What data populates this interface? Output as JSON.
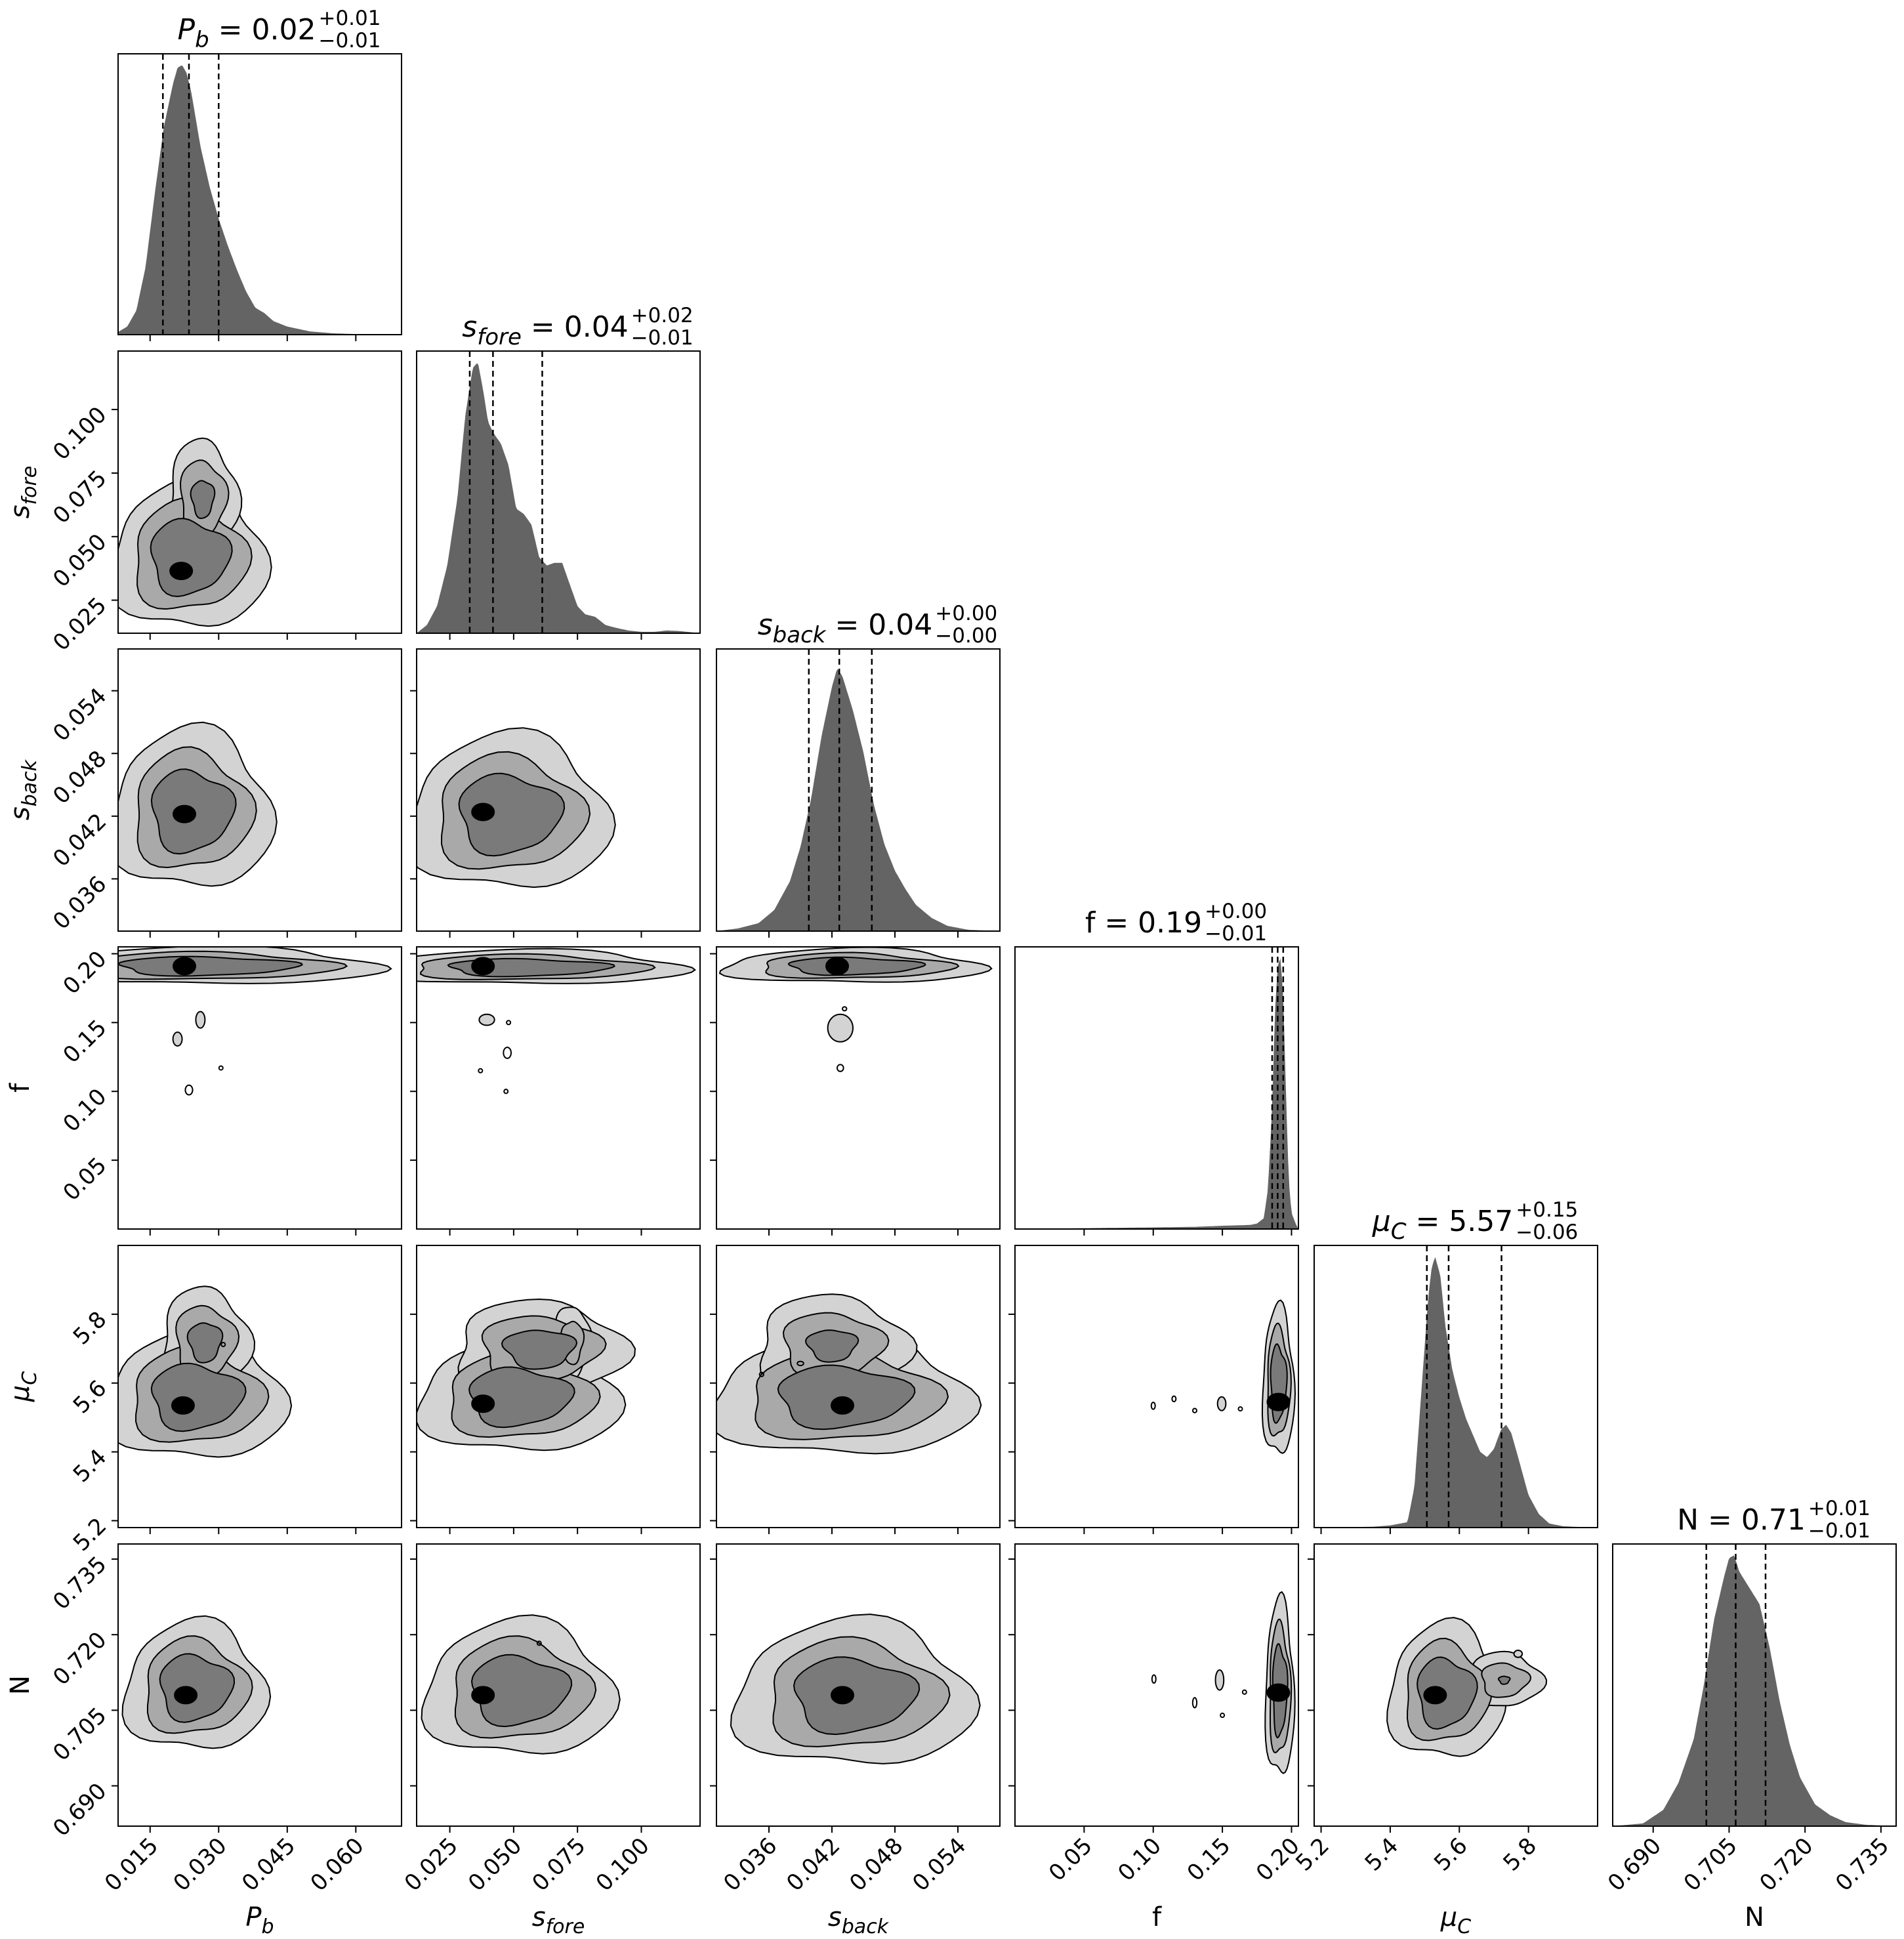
{
  "chart_data": {
    "type": "corner",
    "parameters": [
      {
        "key": "Pb",
        "label_main": "P",
        "label_sub": "b",
        "title_val": "0.02",
        "err_plus": "+0.01",
        "err_minus": "−0.01",
        "range": [
          0.008,
          0.07
        ],
        "ticks": [
          "0.015",
          "0.030",
          "0.045",
          "0.060"
        ],
        "tick_vals": [
          0.015,
          0.03,
          0.045,
          0.06
        ],
        "quantiles": [
          0.0178,
          0.0235,
          0.03
        ],
        "hist_x": [
          0.008,
          0.01,
          0.012,
          0.014,
          0.016,
          0.018,
          0.02,
          0.021,
          0.022,
          0.023,
          0.024,
          0.025,
          0.026,
          0.028,
          0.03,
          0.032,
          0.034,
          0.036,
          0.038,
          0.04,
          0.042,
          0.045,
          0.05,
          0.055,
          0.06,
          0.07
        ],
        "hist_y": [
          0.01,
          0.03,
          0.09,
          0.25,
          0.52,
          0.77,
          0.93,
          0.99,
          1.0,
          0.97,
          0.9,
          0.8,
          0.7,
          0.55,
          0.43,
          0.33,
          0.24,
          0.16,
          0.1,
          0.08,
          0.05,
          0.03,
          0.012,
          0.005,
          0.002,
          0.0
        ]
      },
      {
        "key": "sfore",
        "label_main": "s",
        "label_sub": "fore",
        "title_val": "0.04",
        "err_plus": "+0.02",
        "err_minus": "−0.01",
        "range": [
          0.012,
          0.123
        ],
        "ticks": [
          "0.025",
          "0.050",
          "0.075",
          "0.100"
        ],
        "tick_vals": [
          0.025,
          0.05,
          0.075,
          0.1
        ],
        "quantiles": [
          0.0328,
          0.0419,
          0.0612
        ],
        "hist_x": [
          0.012,
          0.016,
          0.02,
          0.024,
          0.028,
          0.031,
          0.034,
          0.036,
          0.038,
          0.04,
          0.042,
          0.045,
          0.048,
          0.051,
          0.054,
          0.057,
          0.06,
          0.063,
          0.066,
          0.069,
          0.072,
          0.075,
          0.078,
          0.082,
          0.086,
          0.09,
          0.095,
          0.1,
          0.105,
          0.11,
          0.115,
          0.123
        ],
        "hist_y": [
          0.0,
          0.03,
          0.1,
          0.25,
          0.5,
          0.8,
          0.98,
          1.0,
          0.9,
          0.78,
          0.74,
          0.7,
          0.62,
          0.46,
          0.44,
          0.4,
          0.28,
          0.25,
          0.26,
          0.26,
          0.18,
          0.1,
          0.07,
          0.06,
          0.03,
          0.02,
          0.01,
          0.005,
          0.005,
          0.01,
          0.008,
          0.0
        ]
      },
      {
        "key": "sback",
        "label_main": "s",
        "label_sub": "back",
        "title_val": "0.04",
        "err_plus": "+0.00",
        "err_minus": "−0.00",
        "range": [
          0.031,
          0.058
        ],
        "ticks": [
          "0.036",
          "0.042",
          "0.048",
          "0.054"
        ],
        "tick_vals": [
          0.036,
          0.042,
          0.048,
          0.054
        ],
        "quantiles": [
          0.0398,
          0.0427,
          0.0458
        ],
        "hist_x": [
          0.031,
          0.033,
          0.035,
          0.0365,
          0.038,
          0.039,
          0.04,
          0.041,
          0.042,
          0.0425,
          0.043,
          0.044,
          0.045,
          0.046,
          0.047,
          0.048,
          0.049,
          0.05,
          0.0515,
          0.053,
          0.055,
          0.058
        ],
        "hist_y": [
          0.0,
          0.01,
          0.03,
          0.08,
          0.19,
          0.32,
          0.5,
          0.74,
          0.93,
          1.0,
          0.97,
          0.84,
          0.68,
          0.48,
          0.33,
          0.23,
          0.16,
          0.1,
          0.05,
          0.02,
          0.005,
          0.0
        ],
        "hist_norm": 0.97
      },
      {
        "key": "f",
        "label_main": "f",
        "label_sub": "",
        "title_val": "0.19",
        "err_plus": "+0.00",
        "err_minus": "−0.01",
        "range": [
          0.0,
          0.205
        ],
        "ticks": [
          "0.05",
          "0.10",
          "0.15",
          "0.20"
        ],
        "tick_vals": [
          0.05,
          0.1,
          0.15,
          0.2
        ],
        "quantiles": [
          0.186,
          0.19,
          0.194
        ],
        "hist_x": [
          0.0,
          0.05,
          0.1,
          0.13,
          0.15,
          0.17,
          0.175,
          0.18,
          0.183,
          0.186,
          0.188,
          0.19,
          0.192,
          0.194,
          0.196,
          0.198,
          0.2,
          0.203,
          0.205
        ],
        "hist_y": [
          0.0,
          0.003,
          0.006,
          0.008,
          0.012,
          0.015,
          0.02,
          0.04,
          0.15,
          0.45,
          0.8,
          0.97,
          1.0,
          0.86,
          0.5,
          0.18,
          0.06,
          0.02,
          0.0
        ]
      },
      {
        "key": "muC",
        "label_main": "μ",
        "label_sub": "C",
        "title_val": "5.57",
        "err_plus": "+0.15",
        "err_minus": "−0.06",
        "range": [
          5.18,
          6.0
        ],
        "ticks": [
          "5.2",
          "5.4",
          "5.6",
          "5.8"
        ],
        "tick_vals": [
          5.2,
          5.4,
          5.6,
          5.8
        ],
        "quantiles": [
          5.506,
          5.569,
          5.722
        ],
        "hist_x": [
          5.18,
          5.35,
          5.4,
          5.45,
          5.47,
          5.49,
          5.51,
          5.52,
          5.53,
          5.545,
          5.56,
          5.58,
          5.6,
          5.62,
          5.64,
          5.66,
          5.68,
          5.7,
          5.72,
          5.735,
          5.75,
          5.77,
          5.8,
          5.83,
          5.86,
          5.9,
          5.95,
          6.0
        ],
        "hist_y": [
          0.0,
          0.003,
          0.008,
          0.02,
          0.15,
          0.5,
          0.85,
          0.96,
          1.0,
          0.93,
          0.74,
          0.58,
          0.48,
          0.4,
          0.34,
          0.28,
          0.26,
          0.29,
          0.36,
          0.38,
          0.35,
          0.26,
          0.12,
          0.05,
          0.015,
          0.005,
          0.002,
          0.0
        ]
      },
      {
        "key": "N",
        "label_main": "N",
        "label_sub": "",
        "title_val": "0.71",
        "err_plus": "+0.01",
        "err_minus": "−0.01",
        "range": [
          0.682,
          0.738
        ],
        "ticks": [
          "0.690",
          "0.705",
          "0.720",
          "0.735"
        ],
        "tick_vals": [
          0.69,
          0.705,
          0.72,
          0.735
        ],
        "quantiles": [
          0.7005,
          0.7063,
          0.7122
        ],
        "hist_x": [
          0.682,
          0.688,
          0.692,
          0.695,
          0.698,
          0.7,
          0.702,
          0.704,
          0.705,
          0.706,
          0.707,
          0.709,
          0.711,
          0.713,
          0.715,
          0.717,
          0.719,
          0.722,
          0.725,
          0.728,
          0.732,
          0.738
        ],
        "hist_y": [
          0.0,
          0.01,
          0.06,
          0.16,
          0.32,
          0.52,
          0.76,
          0.92,
          0.99,
          1.0,
          0.94,
          0.88,
          0.82,
          0.66,
          0.46,
          0.3,
          0.18,
          0.08,
          0.04,
          0.015,
          0.005,
          0.0
        ]
      }
    ],
    "pairs": [
      {
        "x": 0,
        "y": 1,
        "peak": [
          0.0218,
          0.0365
        ],
        "blobs": [
          [
            0.0235,
            0.042,
            0.0082,
            0.014,
            0,
            1
          ],
          [
            0.0265,
            0.065,
            0.004,
            0.012,
            0,
            0.7
          ]
        ]
      },
      {
        "x": 0,
        "y": 2,
        "peak": [
          0.0225,
          0.0422
        ],
        "blobs": [
          [
            0.024,
            0.0425,
            0.0085,
            0.0037,
            0,
            1
          ]
        ]
      },
      {
        "x": 0,
        "y": 3,
        "peak": [
          0.0225,
          0.191
        ],
        "blobs": [
          [
            0.027,
            0.191,
            0.0185,
            0.0065,
            0,
            1
          ]
        ],
        "islands": [
          [
            0.026,
            0.152,
            0.001,
            0.006
          ],
          [
            0.021,
            0.138,
            0.001,
            0.005
          ],
          [
            0.0235,
            0.101,
            0.0008,
            0.0035
          ],
          [
            0.0305,
            0.117,
            0.0002,
            0.001
          ]
        ]
      },
      {
        "x": 0,
        "y": 4,
        "peak": [
          0.0222,
          5.535
        ],
        "blobs": [
          [
            0.025,
            5.56,
            0.0095,
            0.09,
            0,
            1
          ],
          [
            0.027,
            5.72,
            0.005,
            0.08,
            0,
            0.75
          ]
        ],
        "islands": [
          [
            0.031,
            5.712,
            0.0003,
            0.004
          ]
        ]
      },
      {
        "x": 0,
        "y": 5,
        "peak": [
          0.0228,
          0.708
        ],
        "blobs": [
          [
            0.0248,
            0.7095,
            0.0075,
            0.0062,
            0,
            1
          ]
        ]
      },
      {
        "x": 1,
        "y": 2,
        "peak": [
          0.038,
          0.0424
        ],
        "blobs": [
          [
            0.048,
            0.0422,
            0.019,
            0.0036,
            0,
            1
          ]
        ]
      },
      {
        "x": 1,
        "y": 3,
        "peak": [
          0.038,
          0.191
        ],
        "blobs": [
          [
            0.055,
            0.19,
            0.03,
            0.006,
            0,
            1
          ]
        ],
        "islands": [
          [
            0.0395,
            0.152,
            0.003,
            0.004
          ],
          [
            0.0475,
            0.128,
            0.0015,
            0.004
          ],
          [
            0.037,
            0.115,
            0.0004,
            0.001
          ],
          [
            0.047,
            0.1,
            0.0005,
            0.0015
          ],
          [
            0.048,
            0.15,
            0.0001,
            0.0005
          ]
        ]
      },
      {
        "x": 1,
        "y": 4,
        "peak": [
          0.038,
          5.54
        ],
        "blobs": [
          [
            0.052,
            5.56,
            0.019,
            0.08,
            0,
            1
          ],
          [
            0.06,
            5.7,
            0.017,
            0.07,
            0,
            0.8
          ],
          [
            0.073,
            5.72,
            0.004,
            0.06,
            0,
            0.55
          ]
        ]
      },
      {
        "x": 1,
        "y": 5,
        "peak": [
          0.038,
          0.708
        ],
        "blobs": [
          [
            0.052,
            0.709,
            0.018,
            0.0065,
            0,
            1
          ]
        ],
        "islands": [
          [
            0.06,
            0.7183,
            0.0006,
            0.0004
          ]
        ]
      },
      {
        "x": 2,
        "y": 3,
        "peak": [
          0.0425,
          0.191
        ],
        "blobs": [
          [
            0.044,
            0.191,
            0.006,
            0.006,
            0,
            1
          ]
        ],
        "islands": [
          [
            0.0428,
            0.146,
            0.0012,
            0.01
          ],
          [
            0.0428,
            0.117,
            0.0003,
            0.0025
          ],
          [
            0.0432,
            0.16,
            0.0002,
            0.001
          ]
        ]
      },
      {
        "x": 2,
        "y": 4,
        "peak": [
          0.043,
          5.535
        ],
        "blobs": [
          [
            0.043,
            5.56,
            0.006,
            0.085,
            0,
            1
          ],
          [
            0.042,
            5.71,
            0.0038,
            0.075,
            0,
            0.7
          ]
        ],
        "islands": [
          [
            0.0353,
            5.625,
            0.0002,
            0.006
          ],
          [
            0.039,
            5.657,
            0.0003,
            0.006
          ]
        ]
      },
      {
        "x": 2,
        "y": 5,
        "peak": [
          0.043,
          0.708
        ],
        "blobs": [
          [
            0.044,
            0.708,
            0.0055,
            0.007,
            0,
            1
          ]
        ]
      },
      {
        "x": 3,
        "y": 4,
        "peak": [
          0.1905,
          5.545
        ],
        "blobs": [
          [
            0.1905,
            5.6,
            0.0055,
            0.105,
            0,
            1
          ]
        ],
        "islands": [
          [
            0.1495,
            5.54,
            0.003,
            0.02
          ],
          [
            0.1,
            5.534,
            0.0008,
            0.01
          ],
          [
            0.115,
            5.554,
            0.0008,
            0.008
          ],
          [
            0.13,
            5.52,
            0.0005,
            0.006
          ],
          [
            0.163,
            5.525,
            0.0002,
            0.004
          ]
        ]
      },
      {
        "x": 3,
        "y": 5,
        "peak": [
          0.1905,
          0.7085
        ],
        "blobs": [
          [
            0.1915,
            0.709,
            0.005,
            0.0085,
            0,
            1
          ]
        ],
        "islands": [
          [
            0.1005,
            0.7112,
            0.0012,
            0.0008
          ],
          [
            0.148,
            0.711,
            0.003,
            0.002
          ],
          [
            0.13,
            0.7065,
            0.0015,
            0.001
          ],
          [
            0.15,
            0.704,
            0.0002,
            0.0004
          ],
          [
            0.166,
            0.7086,
            0.0002,
            0.0004
          ]
        ]
      },
      {
        "x": 4,
        "y": 5,
        "peak": [
          5.53,
          0.708
        ],
        "blobs": [
          [
            5.56,
            0.7085,
            0.08,
            0.0065,
            0,
            1
          ],
          [
            5.73,
            0.711,
            0.06,
            0.003,
            0,
            0.6
          ]
        ],
        "islands": [
          [
            5.77,
            0.7162,
            0.012,
            0.0007
          ]
        ]
      }
    ]
  }
}
